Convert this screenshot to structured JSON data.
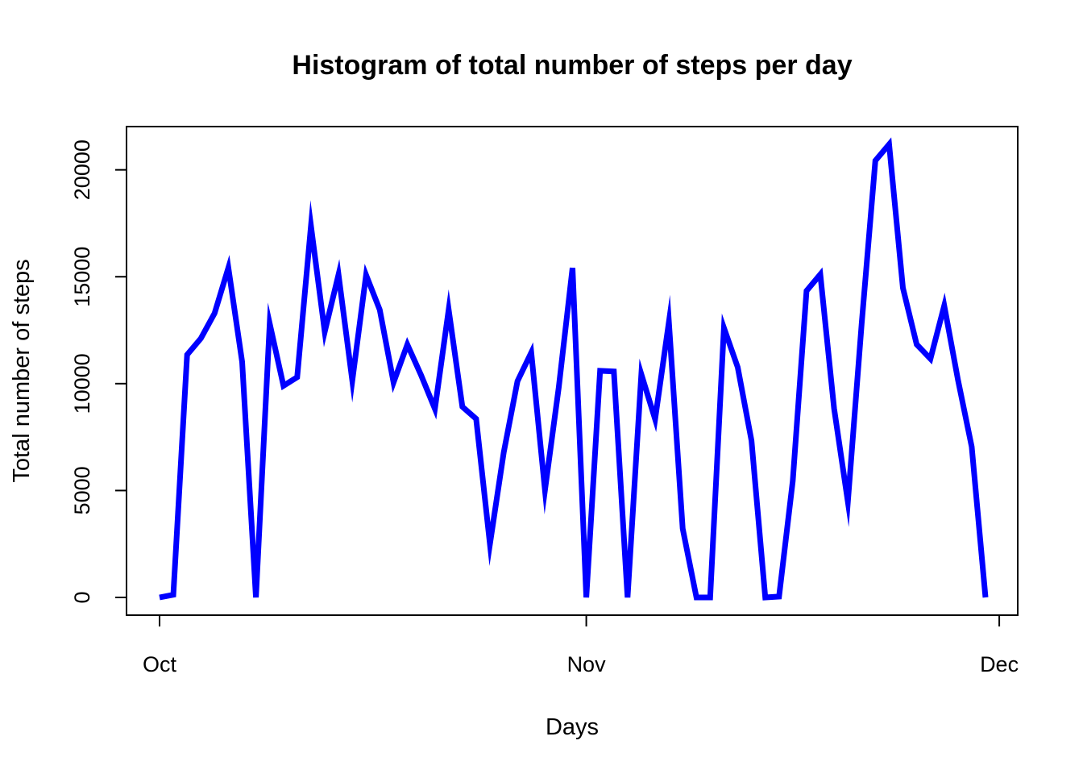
{
  "chart_data": {
    "type": "line",
    "title": "Histogram of total number of steps per day",
    "xlabel": "Days",
    "ylabel": "Total number of steps",
    "x_ticks": [
      {
        "label": "Oct",
        "date": "2012-10-01"
      },
      {
        "label": "Nov",
        "date": "2012-11-01"
      },
      {
        "label": "Dec",
        "date": "2012-12-01"
      }
    ],
    "y_ticks": [
      0,
      5000,
      10000,
      15000,
      20000
    ],
    "xlim": [
      "2012-10-01",
      "2012-11-30"
    ],
    "ylim": [
      0,
      21194
    ],
    "grid": false,
    "legend": "none",
    "line_color": "#0000ff",
    "series": [
      {
        "x": [
          "2012-10-01",
          "2012-10-02",
          "2012-10-03",
          "2012-10-04",
          "2012-10-05",
          "2012-10-06",
          "2012-10-07",
          "2012-10-08",
          "2012-10-09",
          "2012-10-10",
          "2012-10-11",
          "2012-10-12",
          "2012-10-13",
          "2012-10-14",
          "2012-10-15",
          "2012-10-16",
          "2012-10-17",
          "2012-10-18",
          "2012-10-19",
          "2012-10-20",
          "2012-10-21",
          "2012-10-22",
          "2012-10-23",
          "2012-10-24",
          "2012-10-25",
          "2012-10-26",
          "2012-10-27",
          "2012-10-28",
          "2012-10-29",
          "2012-10-30",
          "2012-10-31",
          "2012-11-01",
          "2012-11-02",
          "2012-11-03",
          "2012-11-04",
          "2012-11-05",
          "2012-11-06",
          "2012-11-07",
          "2012-11-08",
          "2012-11-09",
          "2012-11-10",
          "2012-11-11",
          "2012-11-12",
          "2012-11-13",
          "2012-11-14",
          "2012-11-15",
          "2012-11-16",
          "2012-11-17",
          "2012-11-18",
          "2012-11-19",
          "2012-11-20",
          "2012-11-21",
          "2012-11-22",
          "2012-11-23",
          "2012-11-24",
          "2012-11-25",
          "2012-11-26",
          "2012-11-27",
          "2012-11-28",
          "2012-11-29",
          "2012-11-30"
        ],
        "values": [
          0,
          126,
          11352,
          12116,
          13294,
          15420,
          11015,
          0,
          12811,
          9900,
          10304,
          17382,
          12426,
          15098,
          10139,
          15084,
          13452,
          10056,
          11829,
          10395,
          8821,
          13460,
          8918,
          8355,
          2492,
          6778,
          10119,
          11458,
          5018,
          9819,
          15414,
          0,
          10600,
          10571,
          0,
          10439,
          8334,
          12883,
          3219,
          0,
          0,
          12608,
          10765,
          7336,
          0,
          41,
          5441,
          14339,
          15110,
          8841,
          4472,
          12787,
          20427,
          21194,
          14478,
          11834,
          11162,
          13646,
          10183,
          7047,
          0
        ]
      }
    ]
  }
}
